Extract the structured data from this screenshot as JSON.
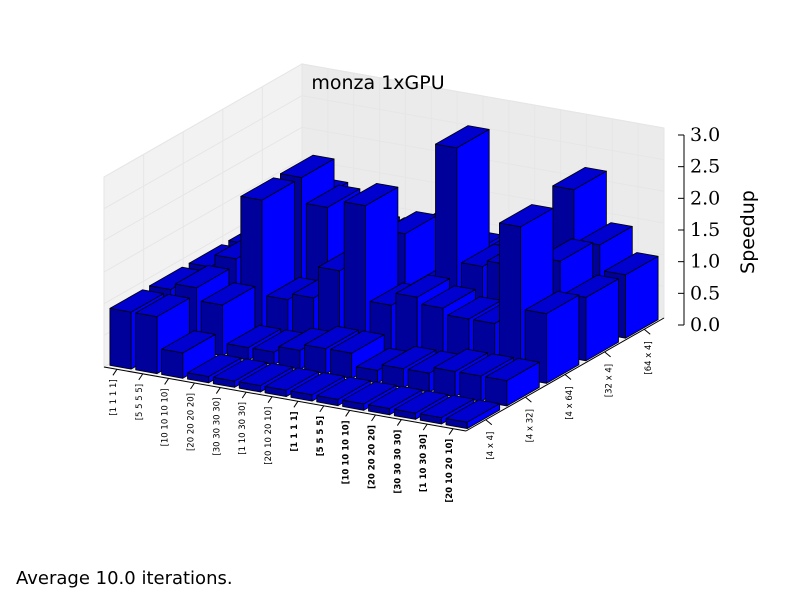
{
  "chart_data": {
    "type": "bar3d",
    "title": "monza 1xGPU",
    "zlabel": "Speedup",
    "zlim": [
      0.0,
      3.0
    ],
    "zticks": [
      "0.0",
      "0.5",
      "1.0",
      "1.5",
      "2.0",
      "2.5",
      "3.0"
    ],
    "grid": true,
    "x_categories": [
      "[1 1 1 1]",
      "[5 5 5 5]",
      "[10 10 10 10]",
      "[20 20 20 20]",
      "[30 30 30 30]",
      "[1 10 30 30]",
      "[20 10 20 10]",
      "[1 1 1 1]",
      "[5 5 5 5]",
      "[10 10 10 10]",
      "[20 20 20 20]",
      "[30 30 30 30]",
      "[1 10 30 30]",
      "[20 10 20 10]"
    ],
    "x_bold": [
      false,
      false,
      false,
      false,
      false,
      false,
      false,
      true,
      true,
      true,
      true,
      true,
      true,
      true
    ],
    "y_categories": [
      "[4 x 4]",
      "[4 x 32]",
      "[4 x 64]",
      "[32 x 4]",
      "[64 x 4]"
    ],
    "values": [
      [
        0.9,
        0.9,
        0.9,
        0.9,
        0.9
      ],
      [
        0.9,
        1.0,
        1.1,
        1.2,
        1.3
      ],
      [
        0.4,
        0.8,
        2.1,
        2.1,
        1.1
      ],
      [
        0.1,
        0.2,
        0.6,
        1.7,
        0.9
      ],
      [
        0.1,
        0.2,
        0.7,
        0.7,
        0.9
      ],
      [
        0.1,
        0.3,
        1.2,
        0.9,
        0.8
      ],
      [
        0.1,
        0.4,
        2.3,
        1.5,
        1.3
      ],
      [
        0.1,
        0.4,
        0.8,
        0.7,
        0.9
      ],
      [
        0.1,
        0.2,
        1.0,
        3.0,
        0.9
      ],
      [
        0.1,
        0.3,
        0.9,
        1.2,
        1.1
      ],
      [
        0.1,
        0.3,
        0.8,
        1.3,
        0.8
      ],
      [
        0.1,
        0.4,
        0.8,
        1.0,
        2.2
      ],
      [
        0.1,
        0.4,
        2.4,
        1.5,
        1.4
      ],
      [
        0.1,
        0.4,
        1.1,
        1.0,
        1.0
      ]
    ]
  },
  "footer": {
    "text": "Average 10.0 iterations."
  },
  "colors": {
    "bar_right_face": "#0000ff",
    "bar_front_face": "#00009a",
    "bar_top_face": "#0000cf",
    "edge": "#000000"
  }
}
